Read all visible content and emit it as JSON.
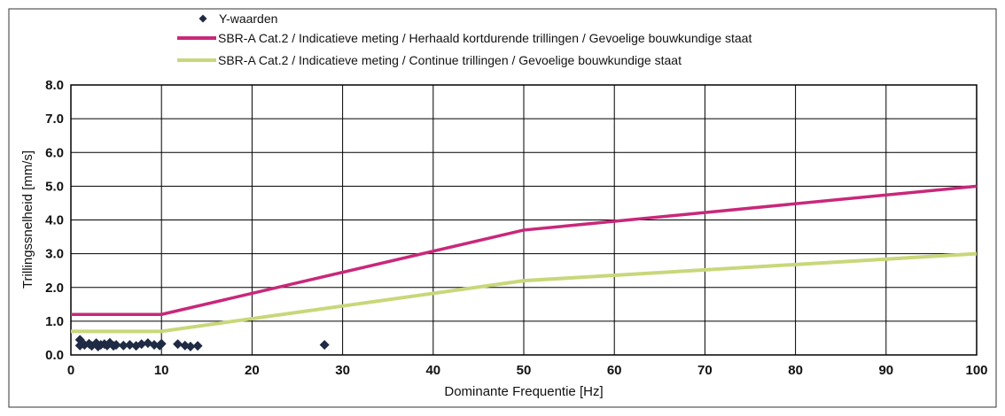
{
  "chart_data": {
    "type": "scatter",
    "title": "",
    "xlabel": "Dominante Frequentie [Hz]",
    "ylabel": "Trillingssnelheid [mm/s]",
    "xlim": [
      0,
      100
    ],
    "ylim": [
      0,
      8
    ],
    "grid": true,
    "legend_position": "top",
    "x_ticks": [
      0,
      10,
      20,
      30,
      40,
      50,
      60,
      70,
      80,
      90,
      100
    ],
    "y_ticks": [
      0,
      1,
      2,
      3,
      4,
      5,
      6,
      7,
      8
    ],
    "x_tick_labels": [
      "0",
      "10",
      "20",
      "30",
      "40",
      "50",
      "60",
      "70",
      "80",
      "90",
      "100"
    ],
    "y_tick_labels": [
      "0.0",
      "1.0",
      "2.0",
      "3.0",
      "4.0",
      "5.0",
      "6.0",
      "7.0",
      "8.0"
    ],
    "series": [
      {
        "name": "Y-waarden",
        "kind": "scatter",
        "color": "#1f2a44",
        "x": [
          1,
          1,
          1.5,
          2,
          2.3,
          2.8,
          3,
          3.3,
          3.7,
          4,
          4.3,
          4.7,
          5,
          5.8,
          6.5,
          7.2,
          7.8,
          8.5,
          9.2,
          9.8,
          10,
          11.8,
          12.6,
          13.2,
          14,
          28
        ],
        "y": [
          0.45,
          0.28,
          0.3,
          0.33,
          0.27,
          0.35,
          0.25,
          0.3,
          0.32,
          0.28,
          0.36,
          0.27,
          0.3,
          0.28,
          0.3,
          0.27,
          0.32,
          0.35,
          0.3,
          0.28,
          0.33,
          0.32,
          0.28,
          0.25,
          0.27,
          0.3
        ]
      },
      {
        "name": "SBR-A Cat.2 / Indicatieve meting / Herhaald kortdurende trillingen / Gevoelige bouwkundige staat",
        "kind": "line",
        "color": "#c8287a",
        "x": [
          0,
          10,
          50,
          100
        ],
        "y": [
          1.2,
          1.2,
          3.7,
          5.0
        ]
      },
      {
        "name": "SBR-A Cat.2 / Indicatieve meting / Continue trillingen / Gevoelige bouwkundige staat",
        "kind": "line",
        "color": "#c9d77a",
        "x": [
          0,
          10,
          50,
          100
        ],
        "y": [
          0.7,
          0.7,
          2.2,
          3.0
        ]
      }
    ]
  }
}
